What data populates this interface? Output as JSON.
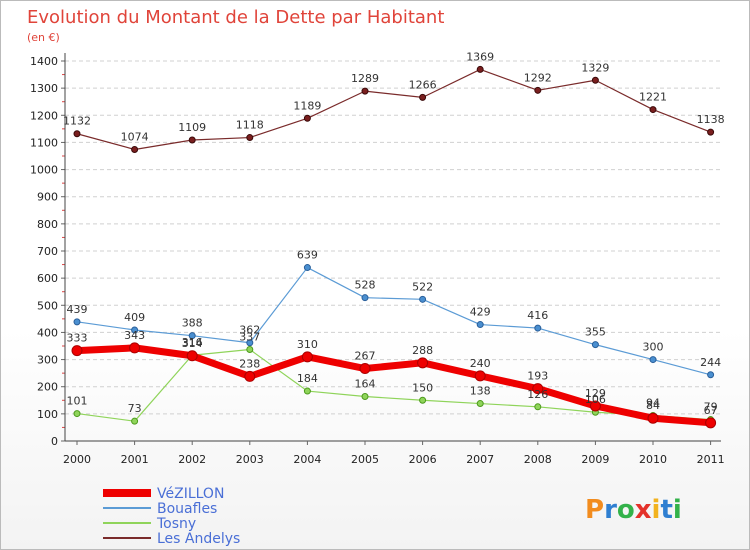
{
  "chart_data": {
    "type": "line",
    "title": "Evolution du Montant de la Dette par Habitant",
    "subtitle": "(en €)",
    "x": [
      "2000",
      "2001",
      "2002",
      "2003",
      "2004",
      "2005",
      "2006",
      "2007",
      "2008",
      "2009",
      "2010",
      "2011"
    ],
    "ylim": [
      0,
      1400
    ],
    "yticks": [
      "0",
      "100",
      "200",
      "300",
      "400",
      "500",
      "600",
      "700",
      "800",
      "900",
      "1000",
      "1100",
      "1200",
      "1300",
      "1400"
    ],
    "grid": "horizontal dashed",
    "legend_position": "bottom-left",
    "series": [
      {
        "name": "Les Andelys",
        "color": "#7a2b2b",
        "values": [
          1132,
          1074,
          1109,
          1118,
          1189,
          1289,
          1266,
          1369,
          1292,
          1329,
          1221,
          1138
        ]
      },
      {
        "name": "Bouafles",
        "color": "#5b9bd5",
        "values": [
          439,
          409,
          388,
          362,
          639,
          528,
          522,
          429,
          416,
          355,
          300,
          244
        ]
      },
      {
        "name": "Tosny",
        "color": "#8fd45a",
        "values": [
          101,
          73,
          316,
          337,
          184,
          164,
          150,
          138,
          126,
          106,
          94,
          79
        ]
      },
      {
        "name": "VéZILLON",
        "color": "#ee0000",
        "values": [
          333,
          343,
          314,
          238,
          310,
          267,
          288,
          240,
          193,
          129,
          84,
          67
        ]
      }
    ],
    "watermark": "Proxiti"
  }
}
